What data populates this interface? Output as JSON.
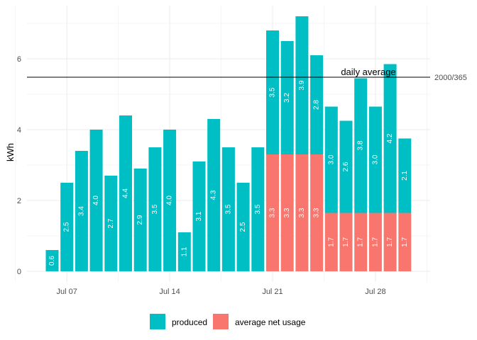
{
  "chart_data": {
    "type": "bar",
    "stacked": true,
    "x": [
      "Jul 06",
      "Jul 07",
      "Jul 08",
      "Jul 09",
      "Jul 10",
      "Jul 11",
      "Jul 12",
      "Jul 13",
      "Jul 14",
      "Jul 15",
      "Jul 16",
      "Jul 17",
      "Jul 18",
      "Jul 19",
      "Jul 20",
      "Jul 21",
      "Jul 22",
      "Jul 23",
      "Jul 24",
      "Jul 25",
      "Jul 26",
      "Jul 27",
      "Jul 28",
      "Jul 29",
      "Jul 30"
    ],
    "x_tick_labels": [
      "Jul 07",
      "Jul 14",
      "Jul 21",
      "Jul 28"
    ],
    "series": [
      {
        "name": "average net usage",
        "color": "#F8766D",
        "values": [
          0,
          0,
          0,
          0,
          0,
          0,
          0,
          0,
          0,
          0,
          0,
          0,
          0,
          0,
          0,
          3.3,
          3.3,
          3.3,
          3.3,
          1.65,
          1.65,
          1.65,
          1.65,
          1.65,
          1.65
        ],
        "labels": [
          "",
          "",
          "",
          "",
          "",
          "",
          "",
          "",
          "",
          "",
          "",
          "",
          "",
          "",
          "",
          "3.3",
          "3.3",
          "3.3",
          "3.3",
          "1.7",
          "1.7",
          "1.7",
          "1.7",
          "1.7",
          "1.7"
        ]
      },
      {
        "name": "produced",
        "color": "#00BFC4",
        "values": [
          0.6,
          2.5,
          3.4,
          4.0,
          2.7,
          4.4,
          2.9,
          3.5,
          4.0,
          1.1,
          3.1,
          4.3,
          3.5,
          2.5,
          3.5,
          3.5,
          3.2,
          3.9,
          2.8,
          3.0,
          2.6,
          3.8,
          3.0,
          4.2,
          2.1
        ],
        "labels": [
          "0.6",
          "2.5",
          "3.4",
          "4.0",
          "2.7",
          "4.4",
          "2.9",
          "3.5",
          "4.0",
          "1.1",
          "3.1",
          "4.3",
          "3.5",
          "2.5",
          "3.5",
          "3.5",
          "3.2",
          "3.9",
          "2.8",
          "3.0",
          "2.6",
          "3.8",
          "3.0",
          "4.2",
          "2.1"
        ]
      }
    ],
    "ylabel": "kWh",
    "xlabel": "",
    "title": "",
    "ylim": [
      -0.3,
      7.5
    ],
    "y_ticks": [
      0,
      2,
      4,
      6
    ],
    "hline": {
      "value": 5.48,
      "label": "daily average",
      "right_label": "2000/365"
    },
    "grid": true,
    "legend": {
      "position": "bottom",
      "items": [
        {
          "label": "produced",
          "color": "#00BFC4"
        },
        {
          "label": "average net usage",
          "color": "#F8766D"
        }
      ]
    }
  }
}
